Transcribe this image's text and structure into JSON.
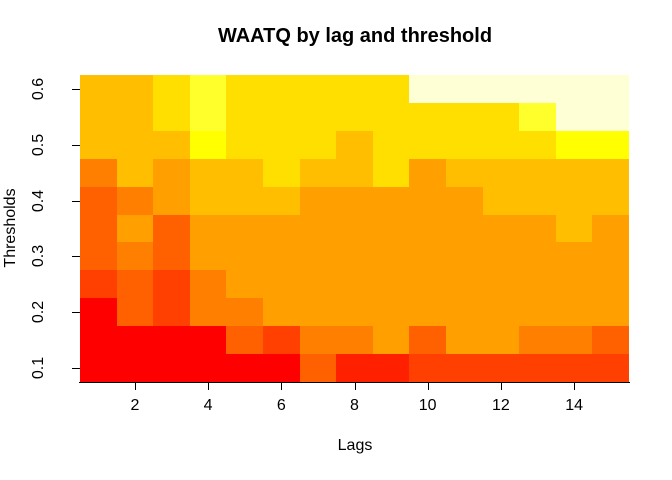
{
  "figure": {
    "background_color": "#FFFFFF",
    "axis_color": "#000000",
    "text_color": "#000000"
  },
  "chart_data": {
    "type": "heatmap",
    "title": "WAATQ by lag and threshold",
    "xlabel": "Lags",
    "ylabel": "Thresholds",
    "x_values": [
      1,
      2,
      3,
      4,
      5,
      6,
      7,
      8,
      9,
      10,
      11,
      12,
      13,
      14,
      15
    ],
    "y_values_top_to_bottom": [
      0.6,
      0.55,
      0.5,
      0.45,
      0.4,
      0.35,
      0.3,
      0.25,
      0.2,
      0.15,
      0.1
    ],
    "x_ticks": [
      {
        "value": 2,
        "label": "2"
      },
      {
        "value": 4,
        "label": "4"
      },
      {
        "value": 6,
        "label": "6"
      },
      {
        "value": 8,
        "label": "8"
      },
      {
        "value": 10,
        "label": "10"
      },
      {
        "value": 12,
        "label": "12"
      },
      {
        "value": 14,
        "label": "14"
      }
    ],
    "y_ticks": [
      {
        "value": 0.1,
        "label": "0.1"
      },
      {
        "value": 0.2,
        "label": "0.2"
      },
      {
        "value": 0.3,
        "label": "0.3"
      },
      {
        "value": 0.4,
        "label": "0.4"
      },
      {
        "value": 0.5,
        "label": "0.5"
      },
      {
        "value": 0.6,
        "label": "0.6"
      }
    ],
    "x_range": [
      0.5,
      15.5
    ],
    "y_range": [
      0.075,
      0.625
    ],
    "grid_lines": false,
    "legend": "none",
    "palette_name": "R heat.colors(12), low value = red, high value = white",
    "palette": [
      "#FF0000",
      "#FF2000",
      "#FF4000",
      "#FF6000",
      "#FF8000",
      "#FF9F00",
      "#FFBF00",
      "#FFDF00",
      "#FFFF00",
      "#FFFF2B",
      "#FFFF80",
      "#FFFFD5"
    ],
    "grid_colors_top_to_bottom": [
      [
        "#FFBF00",
        "#FFBF00",
        "#FFDF00",
        "#FFFF2B",
        "#FFDF00",
        "#FFDF00",
        "#FFDF00",
        "#FFDF00",
        "#FFDF00",
        "#FFFFD5",
        "#FFFFD5",
        "#FFFFD5",
        "#FFFFD5",
        "#FFFFD5",
        "#FFFFD5"
      ],
      [
        "#FFBF00",
        "#FFBF00",
        "#FFDF00",
        "#FFFF2B",
        "#FFDF00",
        "#FFDF00",
        "#FFDF00",
        "#FFDF00",
        "#FFDF00",
        "#FFDF00",
        "#FFDF00",
        "#FFDF00",
        "#FFFF2B",
        "#FFFFD5",
        "#FFFFD5"
      ],
      [
        "#FFBF00",
        "#FFBF00",
        "#FFBF00",
        "#FFFF00",
        "#FFDF00",
        "#FFDF00",
        "#FFDF00",
        "#FFBF00",
        "#FFDF00",
        "#FFDF00",
        "#FFDF00",
        "#FFDF00",
        "#FFDF00",
        "#FFFF00",
        "#FFFF00"
      ],
      [
        "#FF8000",
        "#FFBF00",
        "#FF9F00",
        "#FFBF00",
        "#FFBF00",
        "#FFDF00",
        "#FFBF00",
        "#FFBF00",
        "#FFDF00",
        "#FF9F00",
        "#FFBF00",
        "#FFBF00",
        "#FFBF00",
        "#FFBF00",
        "#FFBF00"
      ],
      [
        "#FF6000",
        "#FF8000",
        "#FF9F00",
        "#FFBF00",
        "#FFBF00",
        "#FFBF00",
        "#FF9F00",
        "#FF9F00",
        "#FF9F00",
        "#FF9F00",
        "#FF9F00",
        "#FFBF00",
        "#FFBF00",
        "#FFBF00",
        "#FFBF00"
      ],
      [
        "#FF6000",
        "#FF9F00",
        "#FF6000",
        "#FF9F00",
        "#FF9F00",
        "#FF9F00",
        "#FF9F00",
        "#FF9F00",
        "#FF9F00",
        "#FF9F00",
        "#FF9F00",
        "#FF9F00",
        "#FF9F00",
        "#FFBF00",
        "#FF9F00"
      ],
      [
        "#FF6000",
        "#FF8000",
        "#FF6000",
        "#FF9F00",
        "#FF9F00",
        "#FF9F00",
        "#FF9F00",
        "#FF9F00",
        "#FF9F00",
        "#FF9F00",
        "#FF9F00",
        "#FF9F00",
        "#FF9F00",
        "#FF9F00",
        "#FF9F00"
      ],
      [
        "#FF4000",
        "#FF6000",
        "#FF4000",
        "#FF8000",
        "#FF9F00",
        "#FF9F00",
        "#FF9F00",
        "#FF9F00",
        "#FF9F00",
        "#FF9F00",
        "#FF9F00",
        "#FF9F00",
        "#FF9F00",
        "#FF9F00",
        "#FF9F00"
      ],
      [
        "#FF0000",
        "#FF6000",
        "#FF4000",
        "#FF8000",
        "#FF8000",
        "#FF9F00",
        "#FF9F00",
        "#FF9F00",
        "#FF9F00",
        "#FF9F00",
        "#FF9F00",
        "#FF9F00",
        "#FF9F00",
        "#FF9F00",
        "#FF9F00"
      ],
      [
        "#FF0000",
        "#FF0000",
        "#FF0000",
        "#FF0000",
        "#FF6000",
        "#FF4000",
        "#FF8000",
        "#FF8000",
        "#FF9F00",
        "#FF6000",
        "#FF9F00",
        "#FF9F00",
        "#FF8000",
        "#FF8000",
        "#FF6000"
      ],
      [
        "#FF0000",
        "#FF0000",
        "#FF0000",
        "#FF0000",
        "#FF0000",
        "#FF0000",
        "#FF6000",
        "#FF2000",
        "#FF2000",
        "#FF4000",
        "#FF4000",
        "#FF4000",
        "#FF4000",
        "#FF4000",
        "#FF4000"
      ]
    ]
  }
}
